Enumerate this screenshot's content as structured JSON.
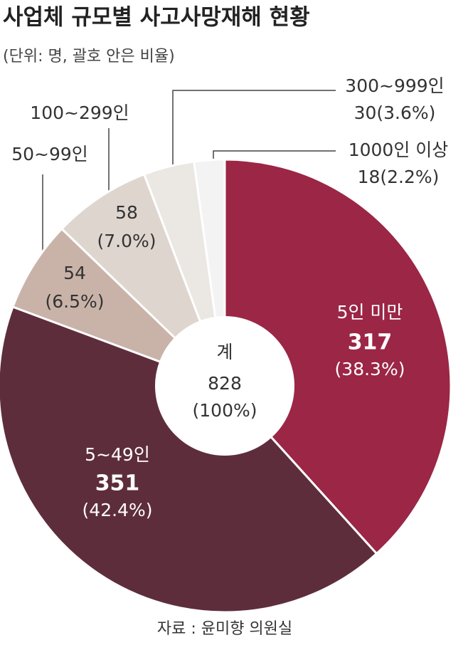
{
  "chart_data": {
    "type": "donut",
    "title": "사업체 규모별 사고사망재해 현황",
    "subtitle": "(단위: 명, 괄호 안은 비율)",
    "source": "자료 : 윤미향 의원실",
    "categories": [
      "5인 미만",
      "5~49인",
      "50~99인",
      "100~299인",
      "300~999인",
      "1000인 이상"
    ],
    "values": [
      317,
      351,
      54,
      58,
      30,
      18
    ],
    "shares": [
      38.3,
      42.4,
      6.5,
      7.0,
      3.6,
      2.2
    ],
    "share_labels": [
      "(38.3%)",
      "(42.4%)",
      "(6.5%)",
      "(7.0%)",
      "(3.6%)",
      "(2.2%)"
    ],
    "colors": [
      "#9b2645",
      "#5e2d3c",
      "#c9b3a8",
      "#ded5cf",
      "#ebe7e3",
      "#f3f3f3"
    ],
    "total_label": "계",
    "total": 828,
    "total_share": 100,
    "total_share_label": "(100%)"
  }
}
